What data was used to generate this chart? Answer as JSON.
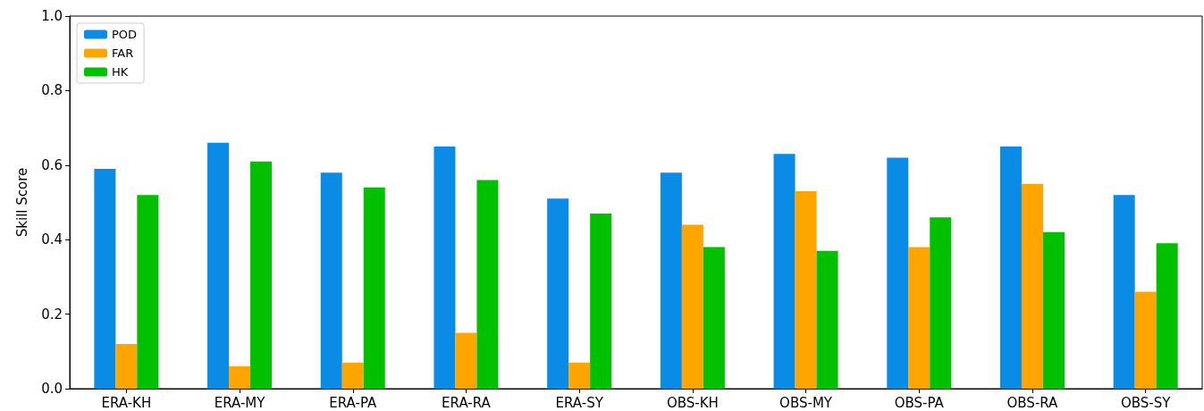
{
  "chart_data": {
    "type": "bar",
    "ylabel": "Skill Score",
    "categories": [
      "ERA-KH",
      "ERA-MY",
      "ERA-PA",
      "ERA-RA",
      "ERA-SY",
      "OBS-KH",
      "OBS-MY",
      "OBS-PA",
      "OBS-RA",
      "OBS-SY"
    ],
    "series": [
      {
        "name": "POD",
        "color": "#0a8ce6",
        "values": [
          0.59,
          0.66,
          0.58,
          0.65,
          0.51,
          0.58,
          0.63,
          0.62,
          0.65,
          0.52
        ]
      },
      {
        "name": "FAR",
        "color": "#ffa500",
        "values": [
          0.12,
          0.06,
          0.07,
          0.15,
          0.07,
          0.44,
          0.53,
          0.38,
          0.55,
          0.26
        ]
      },
      {
        "name": "HK",
        "color": "#00c000",
        "values": [
          0.52,
          0.61,
          0.54,
          0.56,
          0.47,
          0.38,
          0.37,
          0.46,
          0.42,
          0.39
        ]
      }
    ],
    "ylim": [
      0,
      1
    ],
    "yticks": [
      {
        "value": 0,
        "label": "0.0"
      },
      {
        "value": 0.2,
        "label": "0.2"
      },
      {
        "value": 0.4,
        "label": "0.4"
      },
      {
        "value": 0.6,
        "label": "0.6"
      },
      {
        "value": 0.8,
        "label": "0.8"
      },
      {
        "value": 1,
        "label": "1.0"
      }
    ],
    "grid": false,
    "legend": "top left"
  }
}
